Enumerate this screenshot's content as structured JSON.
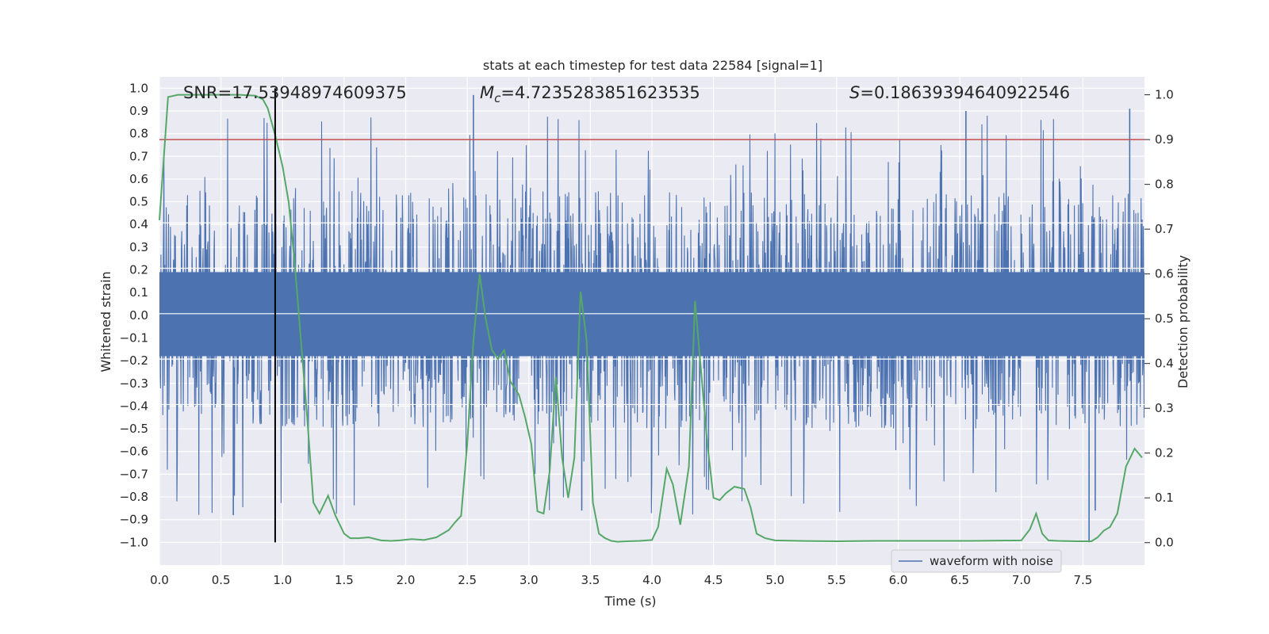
{
  "chart_data": {
    "type": "line",
    "title": "stats at each timestep for test data 22584 [signal=1]",
    "xlabel": "Time (s)",
    "ylabel": "Whitened strain",
    "ylabel_right": "Detection probability",
    "xlim": [
      0.0,
      8.0
    ],
    "ylim": [
      -1.1,
      1.05
    ],
    "ylim_right": [
      -0.05,
      1.04
    ],
    "x_ticks": [
      0.0,
      0.5,
      1.0,
      1.5,
      2.0,
      2.5,
      3.0,
      3.5,
      4.0,
      4.5,
      5.0,
      5.5,
      6.0,
      6.5,
      7.0,
      7.5
    ],
    "x_tick_labels": [
      "0.0",
      "0.5",
      "1.0",
      "1.5",
      "2.0",
      "2.5",
      "3.0",
      "3.5",
      "4.0",
      "4.5",
      "5.0",
      "5.5",
      "6.0",
      "6.5",
      "7.0",
      "7.5"
    ],
    "y_ticks": [
      1.0,
      0.9,
      0.8,
      0.7,
      0.6,
      0.5,
      0.4,
      0.3,
      0.2,
      0.1,
      0.0,
      -0.1,
      -0.2,
      -0.3,
      -0.4,
      -0.5,
      -0.6,
      -0.7,
      -0.8,
      -0.9,
      -1.0
    ],
    "y_tick_labels": [
      "1.0",
      "0.9",
      "0.8",
      "0.7",
      "0.6",
      "0.5",
      "0.4",
      "0.3",
      "0.2",
      "0.1",
      "0.0",
      "−0.1",
      "−0.2",
      "−0.3",
      "−0.4",
      "−0.5",
      "−0.6",
      "−0.7",
      "−0.8",
      "−0.9",
      "−1.0"
    ],
    "y_right_ticks": [
      1.0,
      0.9,
      0.8,
      0.7,
      0.6,
      0.5,
      0.4,
      0.3,
      0.2,
      0.1,
      0.0
    ],
    "y_right_tick_labels": [
      "1.0",
      "0.9",
      "0.8",
      "0.7",
      "0.6",
      "0.5",
      "0.4",
      "0.3",
      "0.2",
      "0.1",
      "0.0"
    ],
    "annotations": {
      "snr": "SNR=17.53948974609375",
      "mc_symbol": "M",
      "mc_sub": "c",
      "mc_value": "=4.7235283851623535",
      "s_symbol": "S",
      "s_value": "=0.18639394640922546"
    },
    "legend": {
      "label": "waveform with noise",
      "location": "lower-right"
    },
    "colors": {
      "waveform": "#4c72b0",
      "probability": "#55a868",
      "threshold": "#c44e52",
      "marker": "#000000",
      "plot_bg": "#eaeaf2",
      "grid": "#ffffff"
    },
    "waveform": {
      "name": "waveform with noise",
      "duration_s": 8.0,
      "dense_band": [
        -0.18,
        0.19
      ],
      "typical_envelope": [
        -0.5,
        0.55
      ],
      "max": 0.97,
      "min": -1.0
    },
    "threshold_line": {
      "axis": "right",
      "value": 0.9
    },
    "marker_line": {
      "x": 0.94,
      "y_range": [
        -1.0,
        1.0
      ]
    },
    "probability_series": {
      "name": "detection probability",
      "axis": "right",
      "x": [
        0.0,
        0.07,
        0.15,
        0.3,
        0.5,
        0.65,
        0.78,
        0.84,
        0.88,
        0.94,
        1.0,
        1.05,
        1.1,
        1.15,
        1.2,
        1.25,
        1.3,
        1.37,
        1.43,
        1.5,
        1.55,
        1.62,
        1.7,
        1.8,
        1.88,
        1.95,
        2.05,
        2.15,
        2.25,
        2.35,
        2.4,
        2.45,
        2.5,
        2.55,
        2.6,
        2.65,
        2.7,
        2.75,
        2.8,
        2.85,
        2.92,
        2.97,
        3.02,
        3.07,
        3.12,
        3.17,
        3.22,
        3.27,
        3.32,
        3.37,
        3.42,
        3.47,
        3.52,
        3.57,
        3.62,
        3.67,
        3.72,
        3.8,
        3.9,
        4.0,
        4.05,
        4.12,
        4.17,
        4.23,
        4.3,
        4.35,
        4.4,
        4.45,
        4.5,
        4.55,
        4.6,
        4.67,
        4.75,
        4.8,
        4.85,
        4.92,
        5.0,
        5.2,
        5.5,
        5.8,
        6.2,
        6.6,
        7.0,
        7.07,
        7.12,
        7.17,
        7.22,
        7.3,
        7.45,
        7.57,
        7.62,
        7.67,
        7.72,
        7.78,
        7.85,
        7.92,
        7.98
      ],
      "y": [
        0.72,
        0.995,
        1.0,
        1.0,
        1.0,
        1.0,
        0.998,
        0.99,
        0.97,
        0.91,
        0.84,
        0.76,
        0.62,
        0.45,
        0.28,
        0.09,
        0.065,
        0.105,
        0.06,
        0.02,
        0.01,
        0.01,
        0.012,
        0.005,
        0.004,
        0.005,
        0.008,
        0.006,
        0.012,
        0.028,
        0.045,
        0.06,
        0.22,
        0.45,
        0.6,
        0.5,
        0.43,
        0.41,
        0.43,
        0.36,
        0.33,
        0.28,
        0.22,
        0.07,
        0.065,
        0.16,
        0.37,
        0.19,
        0.1,
        0.19,
        0.56,
        0.45,
        0.09,
        0.02,
        0.01,
        0.004,
        0.002,
        0.003,
        0.004,
        0.006,
        0.035,
        0.165,
        0.13,
        0.04,
        0.17,
        0.54,
        0.38,
        0.22,
        0.1,
        0.095,
        0.11,
        0.125,
        0.12,
        0.08,
        0.02,
        0.01,
        0.005,
        0.004,
        0.003,
        0.004,
        0.004,
        0.004,
        0.005,
        0.03,
        0.065,
        0.02,
        0.005,
        0.004,
        0.003,
        0.003,
        0.012,
        0.027,
        0.035,
        0.065,
        0.17,
        0.21,
        0.19
      ]
    }
  }
}
